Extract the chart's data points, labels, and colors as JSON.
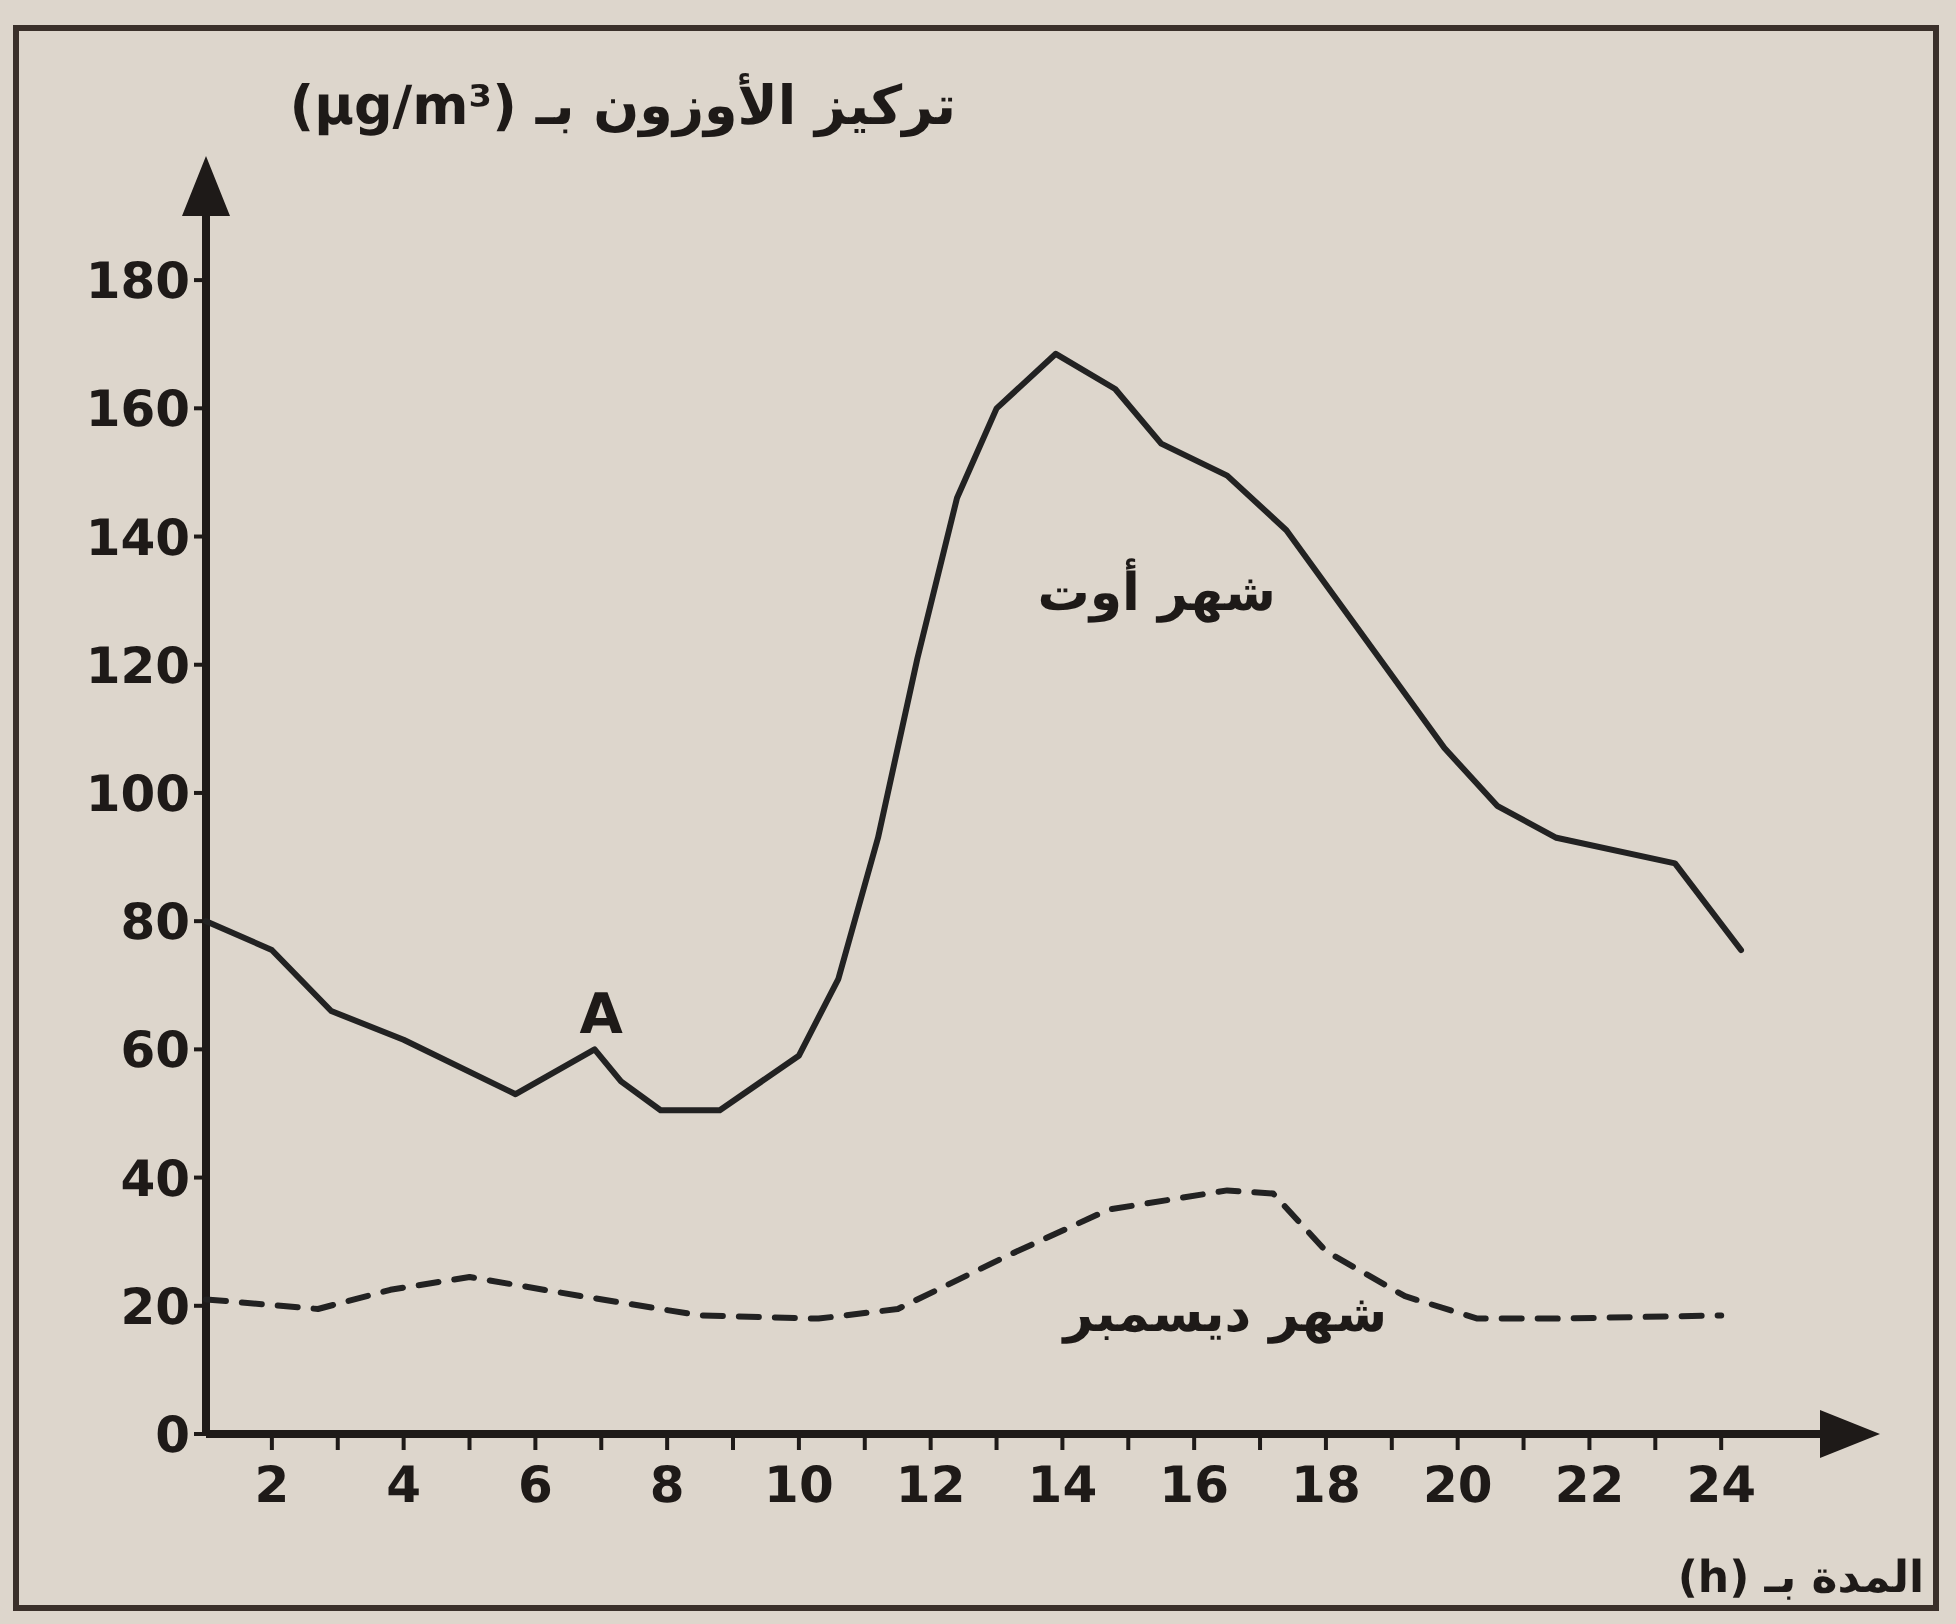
{
  "chart_data": {
    "type": "line",
    "xlabel": "المدة بـ (h)",
    "ylabel": "تركيز الأوزون بـ (μg/m³)",
    "xlim": [
      1,
      25.5
    ],
    "ylim": [
      0,
      190
    ],
    "xticks": [
      {
        "value": 2,
        "label": "2"
      },
      {
        "value": 3,
        "label": null
      },
      {
        "value": 4,
        "label": "4"
      },
      {
        "value": 5,
        "label": null
      },
      {
        "value": 6,
        "label": "6"
      },
      {
        "value": 7,
        "label": null
      },
      {
        "value": 8,
        "label": "8"
      },
      {
        "value": 9,
        "label": null
      },
      {
        "value": 10,
        "label": "10"
      },
      {
        "value": 11,
        "label": null
      },
      {
        "value": 12,
        "label": "12"
      },
      {
        "value": 13,
        "label": null
      },
      {
        "value": 14,
        "label": "14"
      },
      {
        "value": 15,
        "label": null
      },
      {
        "value": 16,
        "label": "16"
      },
      {
        "value": 17,
        "label": null
      },
      {
        "value": 18,
        "label": "18"
      },
      {
        "value": 19,
        "label": null
      },
      {
        "value": 20,
        "label": "20"
      },
      {
        "value": 21,
        "label": null
      },
      {
        "value": 22,
        "label": "22"
      },
      {
        "value": 23,
        "label": null
      },
      {
        "value": 24,
        "label": "24"
      }
    ],
    "yticks": [
      0,
      20,
      40,
      60,
      80,
      100,
      120,
      140,
      160,
      180
    ],
    "annotations": [
      {
        "text": "A",
        "x": 7,
        "y": 60
      }
    ],
    "series": [
      {
        "name": "شهر أوت",
        "color": "#222222",
        "line_style": "solid",
        "x": [
          1,
          2,
          2.9,
          4,
          5.7,
          6.9,
          7.3,
          7.9,
          8.8,
          10,
          10.6,
          11.2,
          11.8,
          12.4,
          13,
          13.9,
          14.8,
          15.5,
          16.5,
          17.4,
          18.6,
          19.8,
          20.6,
          21.5,
          23.3,
          24.3
        ],
        "values": [
          80,
          75.5,
          66,
          61.5,
          53,
          60,
          55,
          50.5,
          50.5,
          59,
          71,
          93,
          121,
          146,
          160,
          168.5,
          163,
          154.5,
          149.5,
          141,
          124,
          107,
          98,
          93,
          89,
          75.5
        ]
      },
      {
        "name": "شهر ديسمبر",
        "color": "#222222",
        "line_style": "dashed",
        "x": [
          1,
          2.7,
          3.8,
          5,
          6.7,
          8.5,
          10.3,
          11.5,
          13.2,
          14.7,
          16.5,
          17.2,
          18,
          19.2,
          20.3,
          21.5,
          24
        ],
        "values": [
          21,
          19.5,
          22.5,
          24.5,
          21.5,
          18.5,
          18,
          19.5,
          28,
          35,
          38,
          37.5,
          28.5,
          21.5,
          18,
          18,
          18.5
        ]
      }
    ]
  }
}
